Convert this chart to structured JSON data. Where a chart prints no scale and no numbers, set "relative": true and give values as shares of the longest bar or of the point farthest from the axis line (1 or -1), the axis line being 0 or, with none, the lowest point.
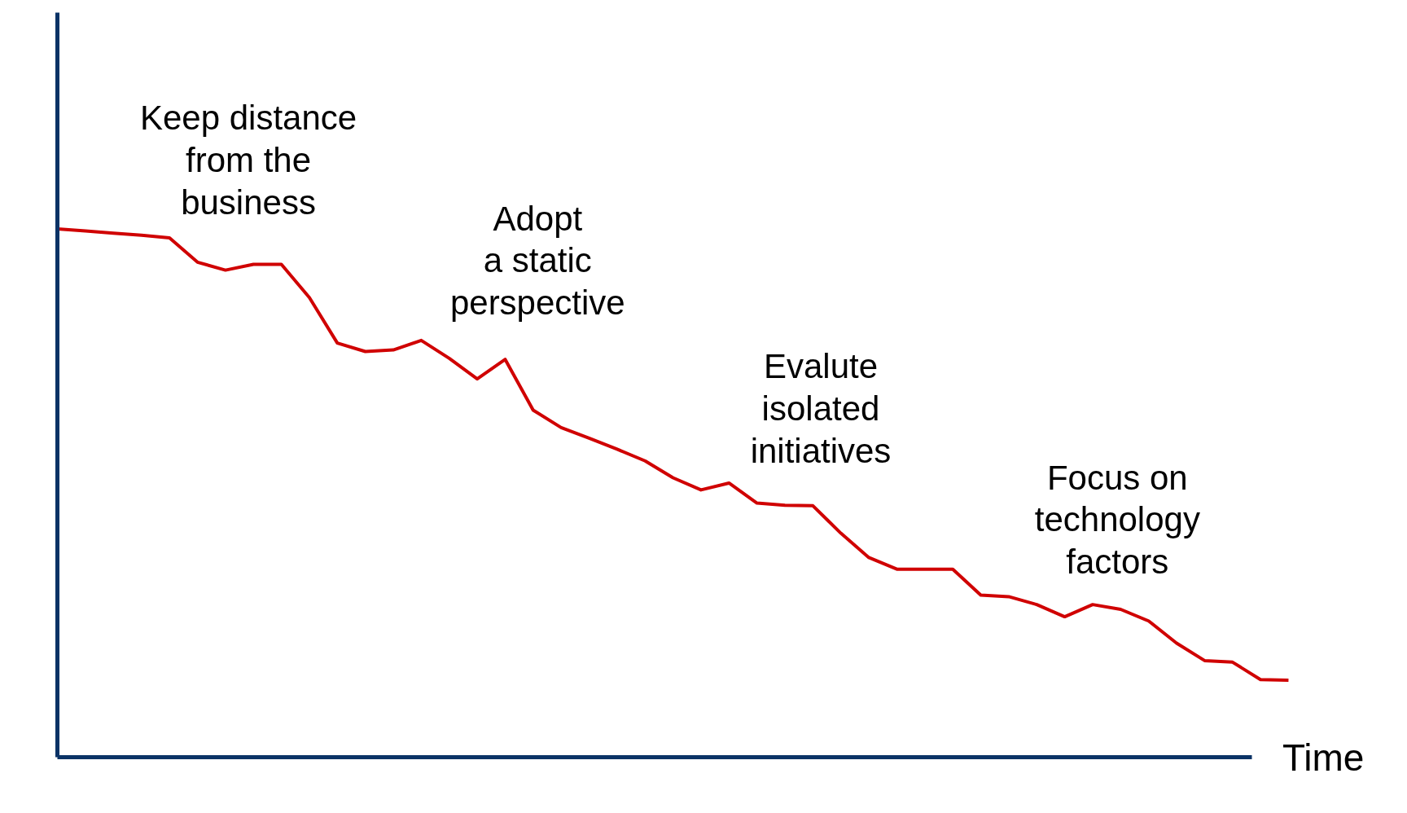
{
  "chart_data": {
    "type": "line",
    "relative": true,
    "xlabel": "Time",
    "categories": [
      null,
      null,
      null,
      null,
      null,
      null,
      null,
      null,
      null,
      null,
      null,
      null,
      null,
      null,
      null,
      null,
      null,
      null,
      null,
      null,
      null,
      null,
      null,
      null,
      null,
      null,
      null,
      null,
      null,
      null,
      null,
      null,
      null,
      null,
      null,
      null,
      null,
      null,
      null,
      null,
      null,
      null,
      null,
      null,
      null
    ],
    "series": [
      {
        "color": "#d00000",
        "values": [
          1.0,
          0.996,
          0.992,
          0.988,
          0.983,
          0.937,
          0.922,
          0.933,
          0.933,
          0.87,
          0.784,
          0.768,
          0.771,
          0.789,
          0.755,
          0.716,
          0.753,
          0.657,
          0.624,
          0.604,
          0.583,
          0.561,
          0.529,
          0.506,
          0.519,
          0.481,
          0.477,
          0.476,
          0.424,
          0.378,
          0.356,
          0.356,
          0.356,
          0.307,
          0.304,
          0.289,
          0.266,
          0.289,
          0.28,
          0.258,
          0.216,
          0.183,
          0.18,
          0.147,
          0.146
        ]
      }
    ],
    "annotations": [
      "Keep distance\nfrom the\nbusiness",
      "Adopt\na static\nperspective",
      "Evalute\nisolated\ninitiatives",
      "Focus on\ntechnology\nfactors"
    ],
    "marker": "none",
    "line_style": "solid"
  }
}
